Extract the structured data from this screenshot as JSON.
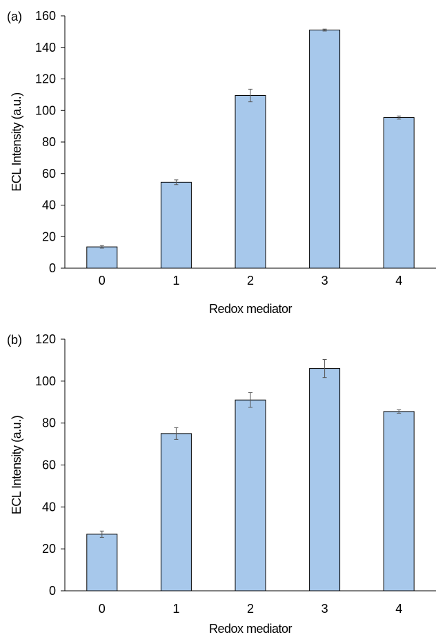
{
  "chart_data": [
    {
      "panel_label": "(a)",
      "type": "bar",
      "categories": [
        "0",
        "1",
        "2",
        "3",
        "4"
      ],
      "values": [
        13.5,
        54.5,
        109.5,
        151,
        95.5
      ],
      "errors": [
        0.8,
        1.5,
        4,
        0.6,
        1
      ],
      "xlabel": "Redox mediator",
      "ylabel": "ECL Intensity (a.u.)",
      "ylim": [
        0,
        160
      ],
      "yticks": [
        0,
        20,
        40,
        60,
        80,
        100,
        120,
        140,
        160
      ],
      "bar_color": "#a7c8eb",
      "grid": false
    },
    {
      "panel_label": "(b)",
      "type": "bar",
      "categories": [
        "0",
        "1",
        "2",
        "3",
        "4"
      ],
      "values": [
        27,
        75,
        91,
        106,
        85.5
      ],
      "errors": [
        1.5,
        2.8,
        3.5,
        4.3,
        0.8
      ],
      "xlabel": "Redox mediator",
      "ylabel": "ECL Intensity (a.u.)",
      "ylim": [
        0,
        120
      ],
      "yticks": [
        0,
        20,
        40,
        60,
        80,
        100,
        120
      ],
      "bar_color": "#a7c8eb",
      "grid": false
    }
  ]
}
